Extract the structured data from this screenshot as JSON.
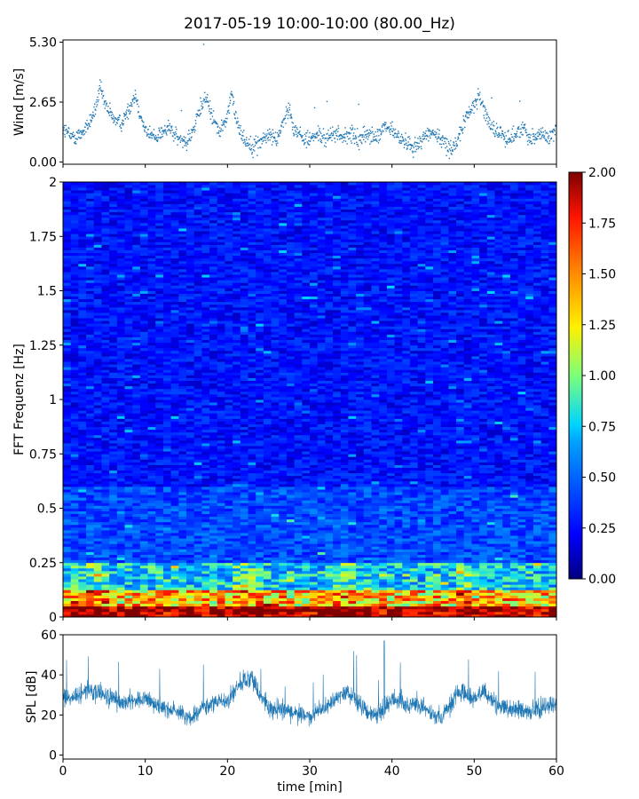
{
  "title": "2017-05-19 10:00-10:00 (80.00_Hz)",
  "chart_data": [
    {
      "type": "scatter",
      "name": "wind-panel",
      "xlabel": "",
      "ylabel": "Wind [m/s]",
      "xlim": [
        0,
        60
      ],
      "ylim": [
        -0.1,
        5.4
      ],
      "yticks": [
        0.0,
        2.65,
        5.3
      ],
      "ytick_labels": [
        "0.00",
        "2.65",
        "5.30"
      ],
      "xticks": [
        0,
        10,
        20,
        30,
        40,
        50,
        60
      ],
      "color": "#1f77b4",
      "profile": [
        [
          0,
          1.5
        ],
        [
          1,
          1.1
        ],
        [
          2,
          1.2
        ],
        [
          3,
          1.6
        ],
        [
          4,
          2.4
        ],
        [
          4.5,
          3.3
        ],
        [
          5,
          2.6
        ],
        [
          6,
          2.0
        ],
        [
          7,
          1.7
        ],
        [
          8,
          2.3
        ],
        [
          8.8,
          3.0
        ],
        [
          9.5,
          2.0
        ],
        [
          10,
          1.4
        ],
        [
          11,
          1.1
        ],
        [
          12,
          1.3
        ],
        [
          13,
          1.5
        ],
        [
          14,
          1.0
        ],
        [
          15,
          0.9
        ],
        [
          16,
          1.5
        ],
        [
          16.8,
          2.5
        ],
        [
          17.5,
          2.8
        ],
        [
          18,
          2.2
        ],
        [
          19,
          1.3
        ],
        [
          20,
          2.0
        ],
        [
          20.5,
          3.0
        ],
        [
          21,
          2.0
        ],
        [
          22,
          1.0
        ],
        [
          23,
          0.7
        ],
        [
          24,
          0.9
        ],
        [
          25,
          1.2
        ],
        [
          26,
          1.0
        ],
        [
          27,
          2.0
        ],
        [
          27.5,
          2.4
        ],
        [
          28,
          1.6
        ],
        [
          29,
          1.1
        ],
        [
          30,
          1.0
        ],
        [
          31,
          1.2
        ],
        [
          32,
          1.0
        ],
        [
          33,
          1.3
        ],
        [
          34,
          1.1
        ],
        [
          35,
          1.2
        ],
        [
          36,
          1.0
        ],
        [
          37,
          1.3
        ],
        [
          38,
          1.0
        ],
        [
          39,
          1.5
        ],
        [
          40,
          1.4
        ],
        [
          41,
          1.0
        ],
        [
          42,
          0.8
        ],
        [
          43,
          0.7
        ],
        [
          44,
          1.2
        ],
        [
          45,
          1.3
        ],
        [
          46,
          1.0
        ],
        [
          47,
          0.6
        ],
        [
          48,
          0.9
        ],
        [
          49,
          2.0
        ],
        [
          50,
          2.5
        ],
        [
          50.5,
          3.0
        ],
        [
          51,
          2.5
        ],
        [
          52,
          1.6
        ],
        [
          53,
          1.3
        ],
        [
          54,
          1.0
        ],
        [
          55,
          1.2
        ],
        [
          56,
          1.5
        ],
        [
          57,
          1.0
        ],
        [
          58,
          1.3
        ],
        [
          59,
          1.0
        ],
        [
          60,
          1.5
        ]
      ]
    },
    {
      "type": "heatmap",
      "name": "spectrogram-panel",
      "xlabel": "",
      "ylabel": "FFT Frequenz [Hz]",
      "xlim": [
        0,
        60
      ],
      "ylim": [
        0,
        2
      ],
      "yticks": [
        0,
        0.25,
        0.5,
        0.75,
        1,
        1.25,
        1.5,
        1.75,
        2
      ],
      "ytick_labels": [
        "0",
        "0.25",
        "0.5",
        "0.75",
        "1",
        "1.25",
        "1.5",
        "1.75",
        "2"
      ],
      "xticks": [
        0,
        10,
        20,
        30,
        40,
        50,
        60
      ],
      "colormap": "jet",
      "colorbar": {
        "range": [
          0,
          2
        ],
        "ticks": [
          "0.00",
          "0.25",
          "0.50",
          "0.75",
          "1.00",
          "1.25",
          "1.50",
          "1.75",
          "2.00"
        ]
      }
    },
    {
      "type": "line",
      "name": "spl-panel",
      "xlabel": "time [min]",
      "ylabel": "SPL [dB]",
      "xlim": [
        0,
        60
      ],
      "ylim": [
        -2,
        60
      ],
      "yticks": [
        0,
        20,
        40,
        60
      ],
      "ytick_labels": [
        "0",
        "20",
        "40",
        "60"
      ],
      "xticks": [
        0,
        10,
        20,
        30,
        40,
        50,
        60
      ],
      "xtick_labels": [
        "0",
        "10",
        "20",
        "30",
        "40",
        "50",
        "60"
      ],
      "color": "#1f77b4",
      "profile": [
        [
          0,
          28
        ],
        [
          2,
          30
        ],
        [
          3,
          33
        ],
        [
          5,
          30
        ],
        [
          7,
          26
        ],
        [
          9,
          28
        ],
        [
          10,
          27
        ],
        [
          12,
          24
        ],
        [
          14,
          22
        ],
        [
          15,
          18
        ],
        [
          16,
          20
        ],
        [
          17,
          24
        ],
        [
          19,
          27
        ],
        [
          20,
          26
        ],
        [
          21,
          33
        ],
        [
          22,
          37
        ],
        [
          23,
          38
        ],
        [
          24,
          30
        ],
        [
          25,
          24
        ],
        [
          27,
          22
        ],
        [
          29,
          20
        ],
        [
          30,
          19
        ],
        [
          31,
          22
        ],
        [
          32,
          24
        ],
        [
          33,
          28
        ],
        [
          34,
          32
        ],
        [
          35,
          30
        ],
        [
          36,
          26
        ],
        [
          37,
          22
        ],
        [
          38,
          20
        ],
        [
          39,
          22
        ],
        [
          40,
          28
        ],
        [
          41,
          27
        ],
        [
          42,
          25
        ],
        [
          43,
          26
        ],
        [
          44,
          23
        ],
        [
          45,
          20
        ],
        [
          46,
          18
        ],
        [
          47,
          24
        ],
        [
          48,
          32
        ],
        [
          49,
          30
        ],
        [
          50,
          28
        ],
        [
          51,
          32
        ],
        [
          52,
          28
        ],
        [
          53,
          24
        ],
        [
          55,
          23
        ],
        [
          57,
          22
        ],
        [
          58,
          23
        ],
        [
          60,
          27
        ]
      ]
    }
  ]
}
